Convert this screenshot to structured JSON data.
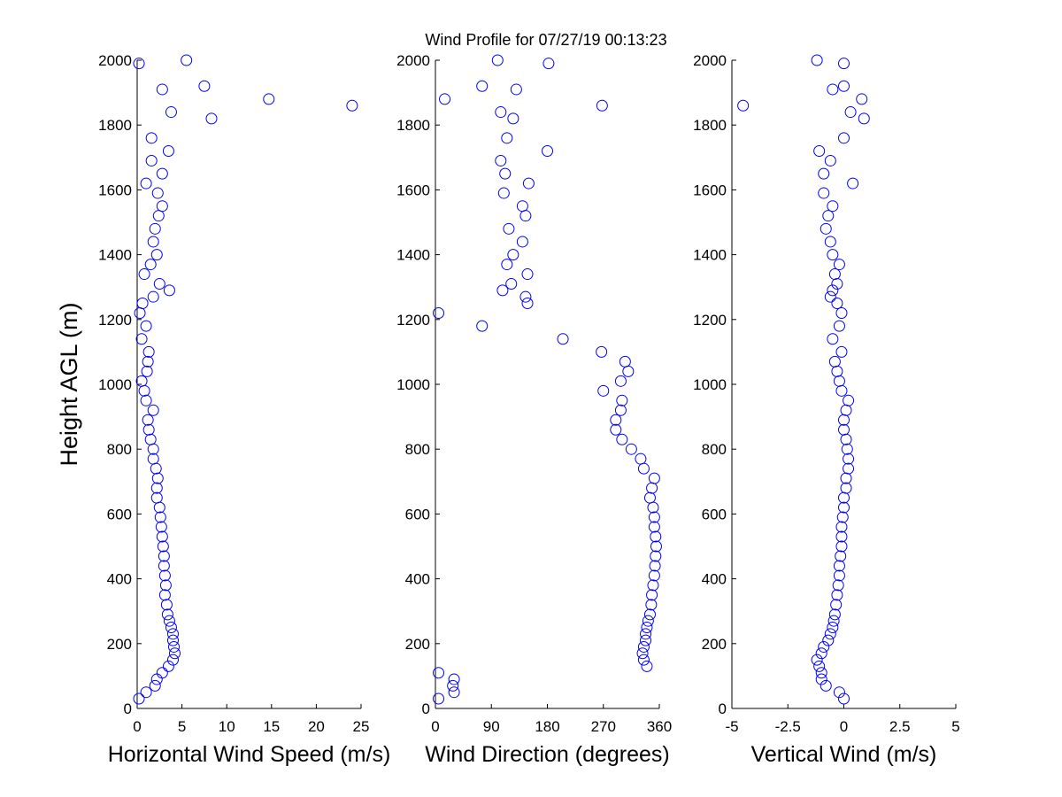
{
  "chart_data": [
    {
      "type": "scatter",
      "ylabel": "Height AGL (m)",
      "xlabel": "Horizontal Wind Speed (m/s)",
      "color": "#0000ff",
      "xlim": [
        0,
        25
      ],
      "xticks": [
        0,
        5,
        10,
        15,
        20,
        25
      ],
      "ylim": [
        0,
        2000
      ],
      "yticks": [
        0,
        200,
        400,
        600,
        800,
        1000,
        1200,
        1400,
        1600,
        1800,
        2000
      ],
      "x": [
        0.2,
        1,
        2,
        2.2,
        2.8,
        3.5,
        4,
        4.2,
        4.1,
        4,
        4,
        3.8,
        3.6,
        3.4,
        3.3,
        3.1,
        3.2,
        3.1,
        3.0,
        3.0,
        2.9,
        2.8,
        2.7,
        2.6,
        2.5,
        2.2,
        2.2,
        2.3,
        2.1,
        1.8,
        1.8,
        1.5,
        1.3,
        1.2,
        1.8,
        1.0,
        0.8,
        0.5,
        1.1,
        1.2,
        1.3,
        0.5,
        1.0,
        0.3,
        0.6,
        1.8,
        3.6,
        2.5,
        0.8,
        1.5,
        2.2,
        1.8,
        2.0,
        2.4,
        2.8,
        2.3,
        1.0,
        2.8,
        1.6,
        3.5,
        1.6,
        8.3,
        3.8,
        24,
        14.7,
        2.8,
        7.5,
        0.2,
        5.5
      ],
      "y": [
        30,
        50,
        70,
        90,
        110,
        130,
        150,
        170,
        190,
        210,
        230,
        250,
        270,
        290,
        320,
        350,
        380,
        410,
        440,
        470,
        500,
        530,
        560,
        590,
        620,
        650,
        680,
        710,
        740,
        770,
        800,
        830,
        860,
        890,
        920,
        950,
        980,
        1010,
        1040,
        1070,
        1100,
        1140,
        1180,
        1220,
        1250,
        1270,
        1290,
        1310,
        1340,
        1370,
        1400,
        1440,
        1480,
        1520,
        1550,
        1590,
        1620,
        1650,
        1690,
        1720,
        1760,
        1820,
        1840,
        1860,
        1880,
        1910,
        1920,
        1990,
        2000
      ]
    },
    {
      "type": "scatter",
      "title": "Wind Profile for  07/27/19 00:13:23",
      "xlabel": "Wind Direction (degrees)",
      "color": "#0000ff",
      "xlim": [
        0,
        360
      ],
      "xticks": [
        0,
        90,
        180,
        270,
        360
      ],
      "ylim": [
        0,
        2000
      ],
      "yticks": [
        0,
        200,
        400,
        600,
        800,
        1000,
        1200,
        1400,
        1600,
        1800,
        2000
      ],
      "x": [
        5,
        30,
        28,
        30,
        5,
        340,
        335,
        333,
        335,
        338,
        338,
        340,
        342,
        345,
        347,
        348,
        350,
        352,
        353,
        354,
        355,
        354,
        352,
        352,
        350,
        345,
        348,
        352,
        335,
        330,
        315,
        300,
        290,
        290,
        298,
        300,
        270,
        298,
        310,
        305,
        267,
        205,
        75,
        5,
        148,
        145,
        108,
        122,
        148,
        115,
        125,
        140,
        118,
        145,
        140,
        110,
        150,
        112,
        105,
        180,
        115,
        125,
        105,
        268,
        15,
        130,
        75,
        182,
        100
      ],
      "y": [
        30,
        50,
        70,
        90,
        110,
        130,
        150,
        170,
        190,
        210,
        230,
        250,
        270,
        290,
        320,
        350,
        380,
        410,
        440,
        470,
        500,
        530,
        560,
        590,
        620,
        650,
        680,
        710,
        740,
        770,
        800,
        830,
        860,
        890,
        920,
        950,
        980,
        1010,
        1040,
        1070,
        1100,
        1140,
        1180,
        1220,
        1250,
        1270,
        1290,
        1310,
        1340,
        1370,
        1400,
        1440,
        1480,
        1520,
        1550,
        1590,
        1620,
        1650,
        1690,
        1720,
        1760,
        1820,
        1840,
        1860,
        1880,
        1910,
        1920,
        1990,
        2000
      ]
    },
    {
      "type": "scatter",
      "xlabel": "Vertical Wind (m/s)",
      "color": "#0000ff",
      "xlim": [
        -5,
        5
      ],
      "xticks": [
        -5,
        -2.5,
        0,
        2.5,
        5
      ],
      "ylim": [
        0,
        2000
      ],
      "yticks": [
        0,
        200,
        400,
        600,
        800,
        1000,
        1200,
        1400,
        1600,
        1800,
        2000
      ],
      "x": [
        0,
        -0.2,
        -0.8,
        -1.0,
        -1.0,
        -1.1,
        -1.2,
        -1.0,
        -0.9,
        -0.7,
        -0.6,
        -0.5,
        -0.45,
        -0.4,
        -0.35,
        -0.3,
        -0.25,
        -0.2,
        -0.2,
        -0.15,
        -0.1,
        -0.1,
        -0.1,
        -0.05,
        0,
        0,
        0.1,
        0.1,
        0.2,
        0.2,
        0.15,
        0.1,
        0,
        0,
        0.1,
        0.2,
        -0.1,
        -0.2,
        -0.3,
        -0.4,
        -0.1,
        -0.5,
        -0.2,
        -0.1,
        -0.3,
        -0.6,
        -0.5,
        -0.3,
        -0.4,
        -0.2,
        -0.5,
        -0.6,
        -0.8,
        -0.7,
        -0.5,
        -0.9,
        0.4,
        -0.9,
        -0.6,
        -1.1,
        0,
        0.9,
        0.3,
        -4.5,
        0.8,
        -0.5,
        0,
        0,
        -1.2
      ],
      "y": [
        30,
        50,
        70,
        90,
        110,
        130,
        150,
        170,
        190,
        210,
        230,
        250,
        270,
        290,
        320,
        350,
        380,
        410,
        440,
        470,
        500,
        530,
        560,
        590,
        620,
        650,
        680,
        710,
        740,
        770,
        800,
        830,
        860,
        890,
        920,
        950,
        980,
        1010,
        1040,
        1070,
        1100,
        1140,
        1180,
        1220,
        1250,
        1270,
        1290,
        1310,
        1340,
        1370,
        1400,
        1440,
        1480,
        1520,
        1550,
        1590,
        1620,
        1650,
        1690,
        1720,
        1760,
        1820,
        1840,
        1860,
        1880,
        1910,
        1920,
        1990,
        2000
      ]
    }
  ]
}
